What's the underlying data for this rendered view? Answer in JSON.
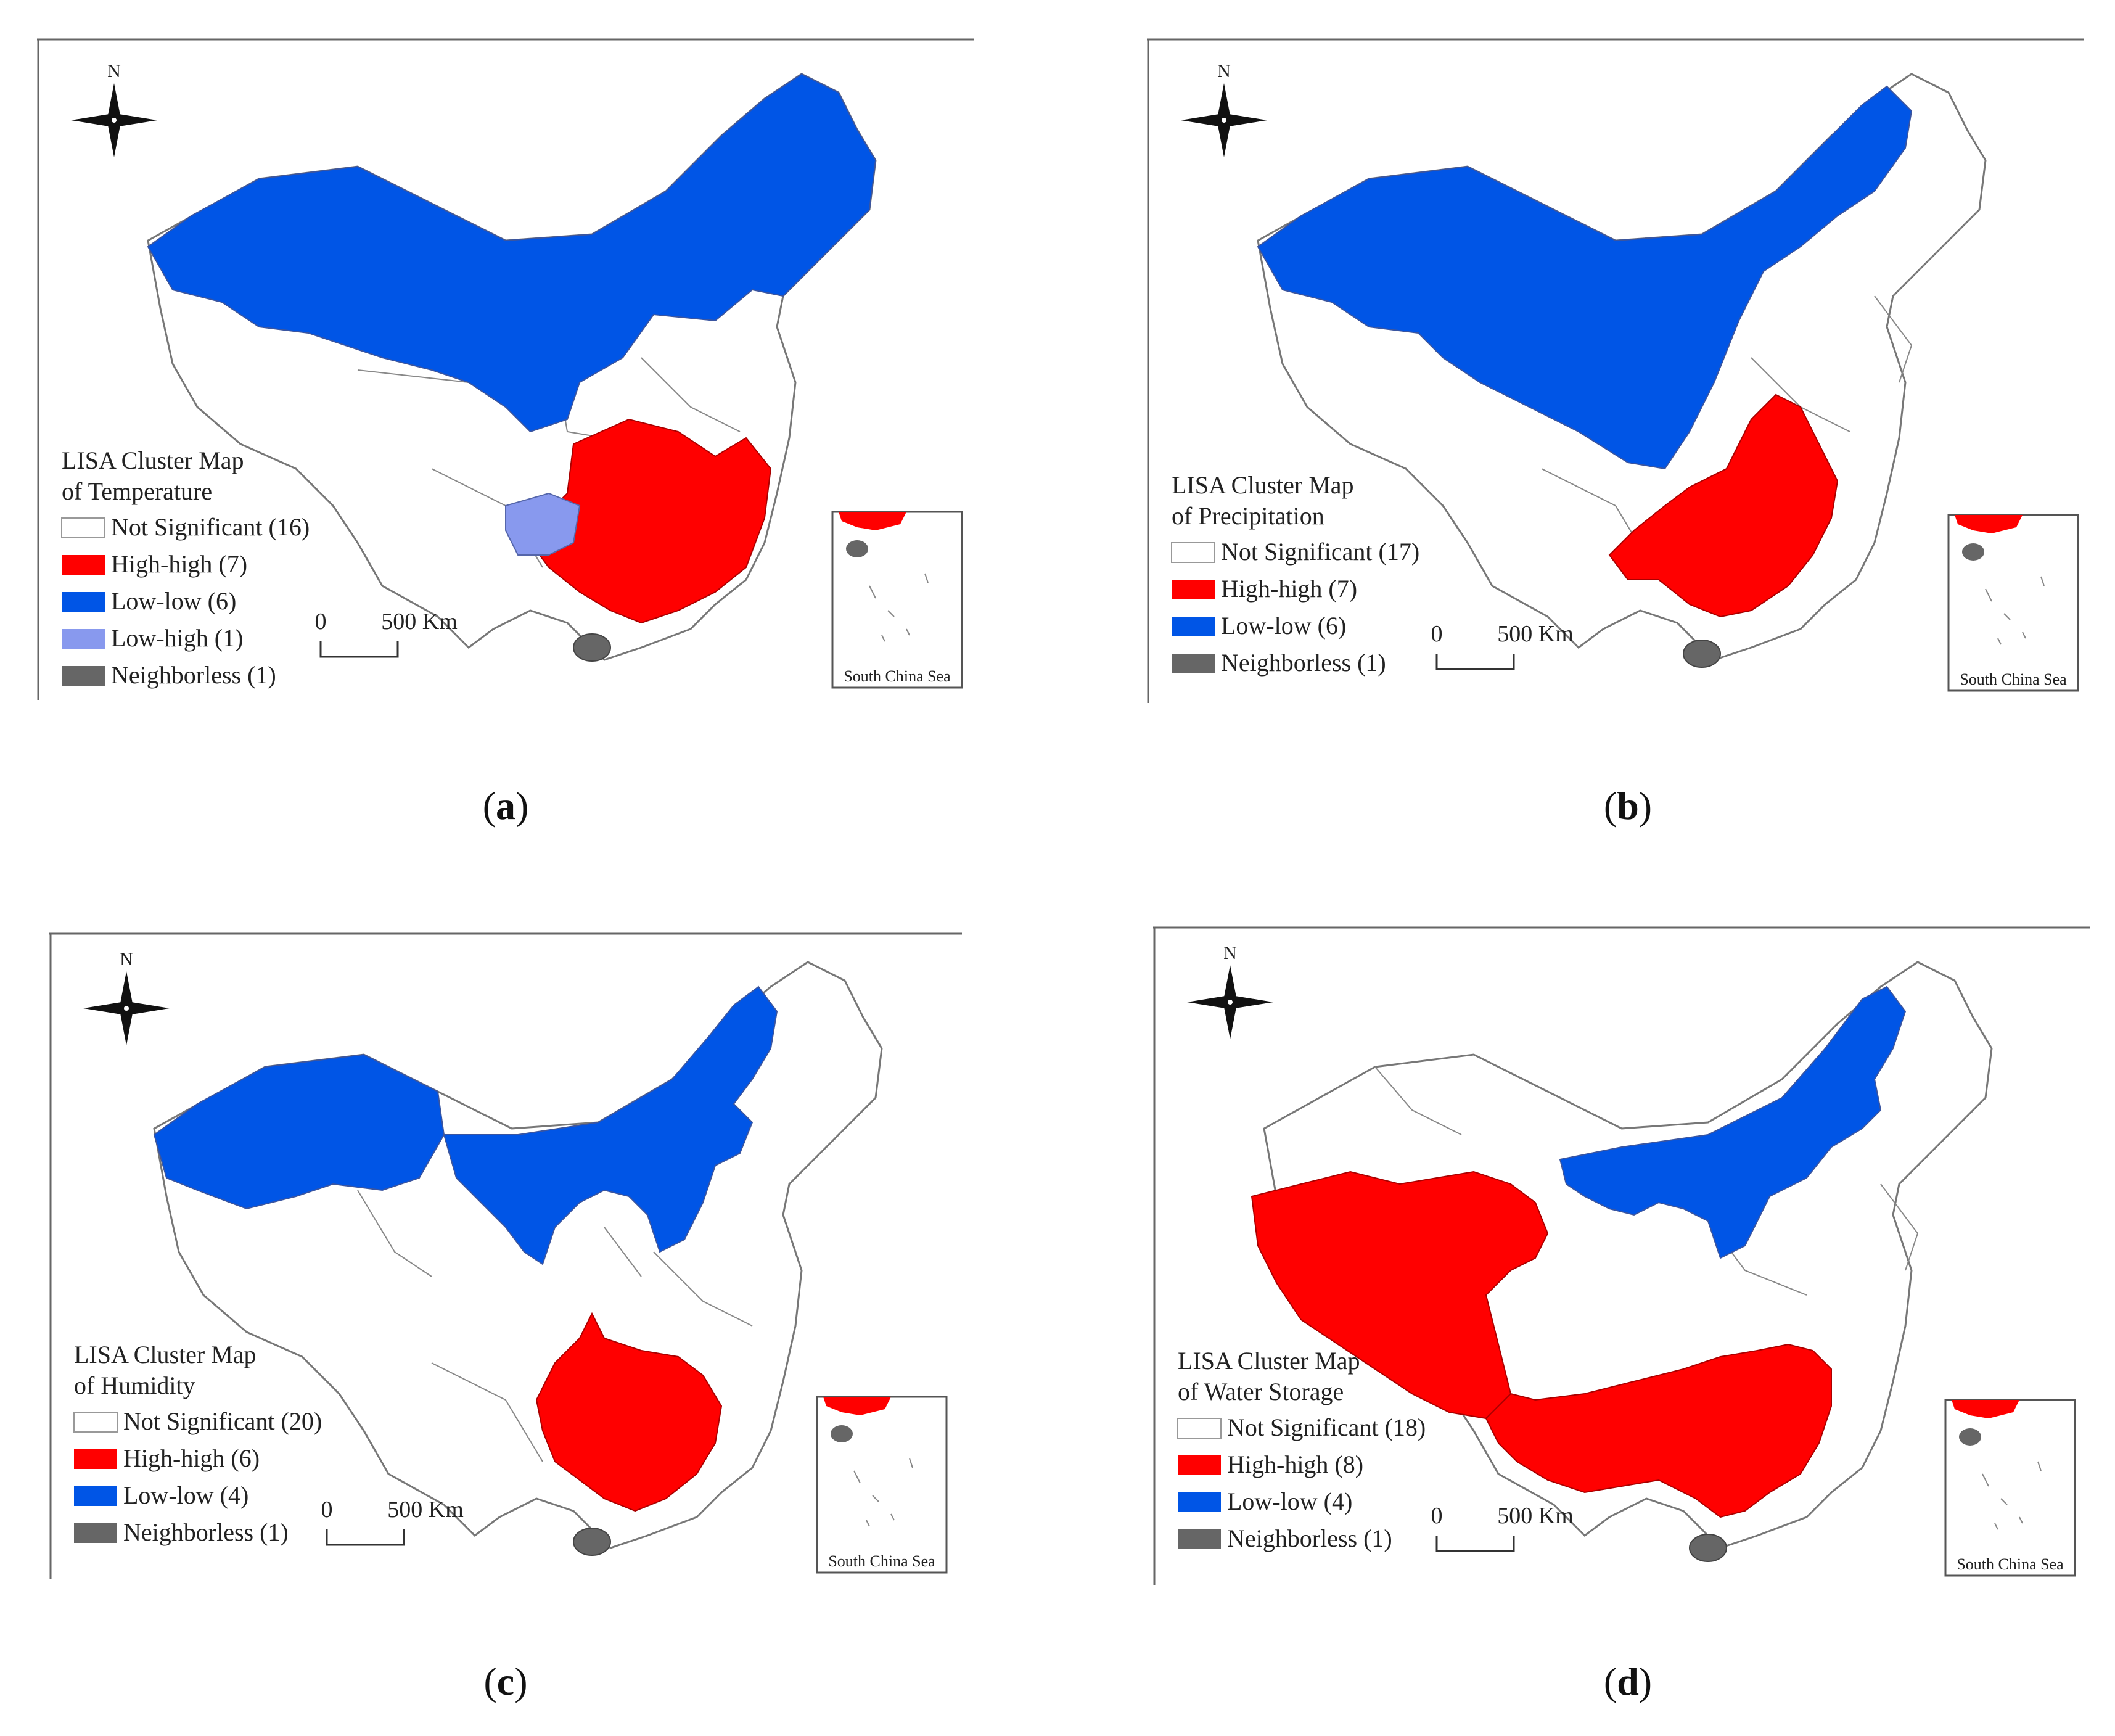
{
  "colors": {
    "not_significant": "#ffffff",
    "high_high": "#ff0000",
    "low_low": "#0055e6",
    "low_high": "#8899ee",
    "neighborless": "#666666",
    "outline": "#777777"
  },
  "north_label": "N",
  "scale_bar": {
    "zero": "0",
    "distance": "500 Km"
  },
  "inset_label": "South China Sea",
  "panels": [
    {
      "id": "a",
      "caption_open": "(",
      "caption_letter": "a",
      "caption_close": ")",
      "legend_title_1": "LISA Cluster Map",
      "legend_title_2": "of  Temperature",
      "legend": [
        {
          "label": "Not Significant (16)",
          "color_key": "not_significant"
        },
        {
          "label": "High-high (7)",
          "color_key": "high_high"
        },
        {
          "label": "Low-low (6)",
          "color_key": "low_low"
        },
        {
          "label": "Low-high (1)",
          "color_key": "low_high"
        },
        {
          "label": "Neighborless (1)",
          "color_key": "neighborless"
        }
      ]
    },
    {
      "id": "b",
      "caption_open": "(",
      "caption_letter": "b",
      "caption_close": ")",
      "legend_title_1": "LISA Cluster Map",
      "legend_title_2": "of  Precipitation",
      "legend": [
        {
          "label": "Not Significant (17)",
          "color_key": "not_significant"
        },
        {
          "label": "High-high (7)",
          "color_key": "high_high"
        },
        {
          "label": "Low-low (6)",
          "color_key": "low_low"
        },
        {
          "label": "Neighborless (1)",
          "color_key": "neighborless"
        }
      ]
    },
    {
      "id": "c",
      "caption_open": "(",
      "caption_letter": "c",
      "caption_close": ")",
      "legend_title_1": "LISA Cluster Map",
      "legend_title_2": "of  Humidity",
      "legend": [
        {
          "label": "Not Significant (20)",
          "color_key": "not_significant"
        },
        {
          "label": "High-high (6)",
          "color_key": "high_high"
        },
        {
          "label": "Low-low (4)",
          "color_key": "low_low"
        },
        {
          "label": "Neighborless (1)",
          "color_key": "neighborless"
        }
      ]
    },
    {
      "id": "d",
      "caption_open": "(",
      "caption_letter": "d",
      "caption_close": ")",
      "legend_title_1": "LISA Cluster Map",
      "legend_title_2": "of  Water Storage",
      "legend": [
        {
          "label": "Not Significant (18)",
          "color_key": "not_significant"
        },
        {
          "label": "High-high (8)",
          "color_key": "high_high"
        },
        {
          "label": "Low-low (4)",
          "color_key": "low_low"
        },
        {
          "label": "Neighborless (1)",
          "color_key": "neighborless"
        }
      ]
    }
  ]
}
